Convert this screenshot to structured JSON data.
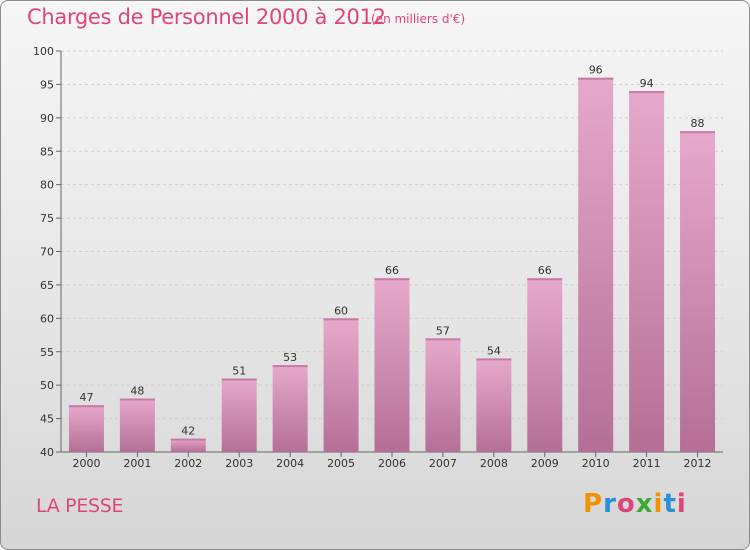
{
  "header": {
    "title": "Charges de Personnel 2000 à 2012",
    "subtitle": "(en milliers d'€)"
  },
  "footer": {
    "commune": "LA PESSE",
    "logo_text": "Proxiti",
    "logo_colors": [
      "#f39200",
      "#2a8fd6",
      "#e0457a",
      "#3aaa35",
      "#f39200",
      "#2a8fd6",
      "#e0457a"
    ]
  },
  "colors": {
    "accent": "#e0457a",
    "bar_light": "#e6a9cb",
    "bar_dark": "#b56f97"
  },
  "chart_data": {
    "type": "bar",
    "title": "Charges de Personnel 2000 à 2012",
    "categories": [
      "2000",
      "2001",
      "2002",
      "2003",
      "2004",
      "2005",
      "2006",
      "2007",
      "2008",
      "2009",
      "2010",
      "2011",
      "2012"
    ],
    "values": [
      47,
      48,
      42,
      51,
      53,
      60,
      66,
      57,
      54,
      66,
      96,
      94,
      88
    ],
    "xlabel": "",
    "ylabel": "",
    "ylim": [
      40,
      100
    ],
    "yticks": [
      40,
      45,
      50,
      55,
      60,
      65,
      70,
      75,
      80,
      85,
      90,
      95,
      100
    ],
    "grid": true,
    "legend": "none"
  }
}
